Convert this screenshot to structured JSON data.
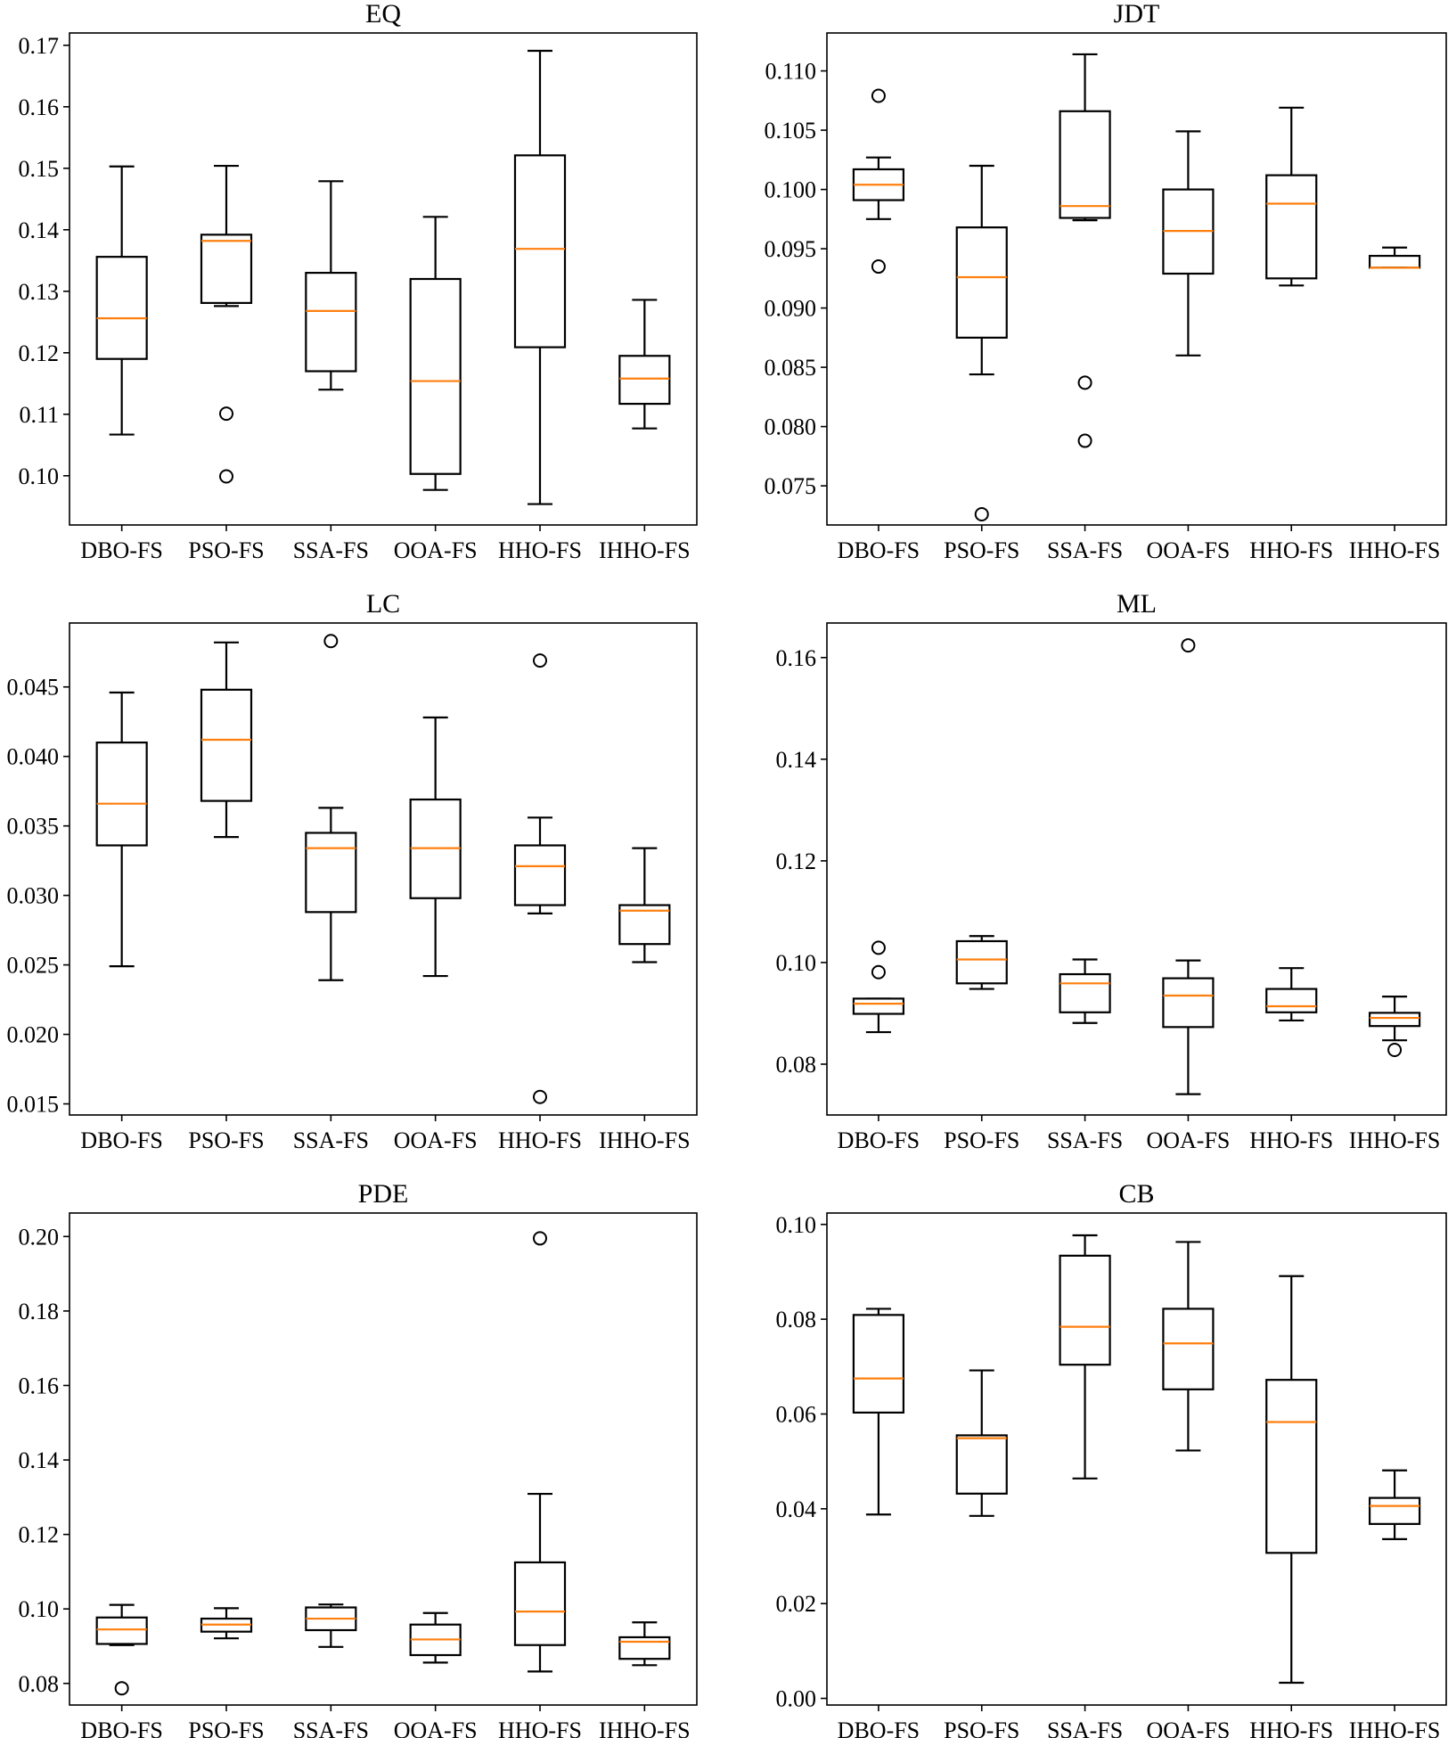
{
  "chart_data": [
    {
      "type": "box",
      "title": "EQ",
      "ylim": [
        0.092,
        0.172
      ],
      "yticks": [
        "0.10",
        "0.11",
        "0.12",
        "0.13",
        "0.14",
        "0.15",
        "0.16",
        "0.17"
      ],
      "categories": [
        "DBO-FS",
        "PSO-FS",
        "SSA-FS",
        "OOA-FS",
        "HHO-FS",
        "IHHO-FS"
      ],
      "boxes": [
        {
          "whislo": 0.1067,
          "q1": 0.119,
          "med": 0.1256,
          "q3": 0.1356,
          "whishi": 0.1503,
          "fliers": []
        },
        {
          "whislo": 0.1276,
          "q1": 0.1281,
          "med": 0.1382,
          "q3": 0.1392,
          "whishi": 0.1504,
          "fliers": [
            0.1101,
            0.0999
          ]
        },
        {
          "whislo": 0.114,
          "q1": 0.117,
          "med": 0.1268,
          "q3": 0.133,
          "whishi": 0.1479,
          "fliers": []
        },
        {
          "whislo": 0.0977,
          "q1": 0.1003,
          "med": 0.1154,
          "q3": 0.132,
          "whishi": 0.1421,
          "fliers": []
        },
        {
          "whislo": 0.0954,
          "q1": 0.1209,
          "med": 0.1369,
          "q3": 0.1521,
          "whishi": 0.1691,
          "fliers": []
        },
        {
          "whislo": 0.1077,
          "q1": 0.1117,
          "med": 0.1158,
          "q3": 0.1195,
          "whishi": 0.1286,
          "fliers": []
        }
      ]
    },
    {
      "type": "box",
      "title": "JDT",
      "ylim": [
        0.0717,
        0.1132
      ],
      "yticks": [
        "0.075",
        "0.080",
        "0.085",
        "0.090",
        "0.095",
        "0.100",
        "0.105",
        "0.110"
      ],
      "categories": [
        "DBO-FS",
        "PSO-FS",
        "SSA-FS",
        "OOA-FS",
        "HHO-FS",
        "IHHO-FS"
      ],
      "boxes": [
        {
          "whislo": 0.0975,
          "q1": 0.0991,
          "med": 0.1004,
          "q3": 0.1017,
          "whishi": 0.1027,
          "fliers": [
            0.1079,
            0.0935
          ]
        },
        {
          "whislo": 0.0844,
          "q1": 0.0875,
          "med": 0.0926,
          "q3": 0.0968,
          "whishi": 0.102,
          "fliers": [
            0.0726
          ]
        },
        {
          "whislo": 0.0974,
          "q1": 0.0976,
          "med": 0.0986,
          "q3": 0.1066,
          "whishi": 0.1114,
          "fliers": [
            0.0837,
            0.0788
          ]
        },
        {
          "whislo": 0.086,
          "q1": 0.0929,
          "med": 0.0965,
          "q3": 0.1,
          "whishi": 0.1049,
          "fliers": []
        },
        {
          "whislo": 0.0919,
          "q1": 0.0925,
          "med": 0.0988,
          "q3": 0.1012,
          "whishi": 0.1069,
          "fliers": []
        },
        {
          "whislo": 0.0934,
          "q1": 0.0934,
          "med": 0.0934,
          "q3": 0.0944,
          "whishi": 0.0951,
          "fliers": []
        }
      ]
    },
    {
      "type": "box",
      "title": "LC",
      "ylim": [
        0.0142,
        0.0496
      ],
      "yticks": [
        "0.015",
        "0.020",
        "0.025",
        "0.030",
        "0.035",
        "0.040",
        "0.045"
      ],
      "categories": [
        "DBO-FS",
        "PSO-FS",
        "SSA-FS",
        "OOA-FS",
        "HHO-FS",
        "IHHO-FS"
      ],
      "boxes": [
        {
          "whislo": 0.0249,
          "q1": 0.0336,
          "med": 0.0366,
          "q3": 0.041,
          "whishi": 0.0446,
          "fliers": []
        },
        {
          "whislo": 0.0342,
          "q1": 0.0368,
          "med": 0.0412,
          "q3": 0.0448,
          "whishi": 0.0482,
          "fliers": []
        },
        {
          "whislo": 0.0239,
          "q1": 0.0288,
          "med": 0.0334,
          "q3": 0.0345,
          "whishi": 0.0363,
          "fliers": [
            0.0483
          ]
        },
        {
          "whislo": 0.0242,
          "q1": 0.0298,
          "med": 0.0334,
          "q3": 0.0369,
          "whishi": 0.0428,
          "fliers": []
        },
        {
          "whislo": 0.0287,
          "q1": 0.0293,
          "med": 0.0321,
          "q3": 0.0336,
          "whishi": 0.0356,
          "fliers": [
            0.0469,
            0.0155
          ]
        },
        {
          "whislo": 0.0252,
          "q1": 0.0265,
          "med": 0.0289,
          "q3": 0.0293,
          "whishi": 0.0334,
          "fliers": []
        }
      ]
    },
    {
      "type": "box",
      "title": "ML",
      "ylim": [
        0.07,
        0.1668
      ],
      "yticks": [
        "0.08",
        "0.10",
        "0.12",
        "0.14",
        "0.16"
      ],
      "categories": [
        "DBO-FS",
        "PSO-FS",
        "SSA-FS",
        "OOA-FS",
        "HHO-FS",
        "IHHO-FS"
      ],
      "boxes": [
        {
          "whislo": 0.0863,
          "q1": 0.0899,
          "med": 0.0919,
          "q3": 0.0929,
          "whishi": 0.0929,
          "fliers": [
            0.1029,
            0.0981
          ]
        },
        {
          "whislo": 0.0948,
          "q1": 0.0959,
          "med": 0.1006,
          "q3": 0.1042,
          "whishi": 0.1052,
          "fliers": []
        },
        {
          "whislo": 0.0881,
          "q1": 0.0902,
          "med": 0.0959,
          "q3": 0.0977,
          "whishi": 0.1006,
          "fliers": []
        },
        {
          "whislo": 0.0741,
          "q1": 0.0873,
          "med": 0.0935,
          "q3": 0.0969,
          "whishi": 0.1004,
          "fliers": [
            0.1624
          ]
        },
        {
          "whislo": 0.0886,
          "q1": 0.0902,
          "med": 0.0914,
          "q3": 0.0948,
          "whishi": 0.0989,
          "fliers": []
        },
        {
          "whislo": 0.0847,
          "q1": 0.0875,
          "med": 0.0891,
          "q3": 0.0901,
          "whishi": 0.0933,
          "fliers": [
            0.0828
          ]
        }
      ]
    },
    {
      "type": "box",
      "title": "PDE",
      "ylim": [
        0.0742,
        0.2063
      ],
      "yticks": [
        "0.08",
        "0.10",
        "0.12",
        "0.14",
        "0.16",
        "0.18",
        "0.20"
      ],
      "categories": [
        "DBO-FS",
        "PSO-FS",
        "SSA-FS",
        "OOA-FS",
        "HHO-FS",
        "IHHO-FS"
      ],
      "boxes": [
        {
          "whislo": 0.0903,
          "q1": 0.0906,
          "med": 0.0945,
          "q3": 0.0977,
          "whishi": 0.1011,
          "fliers": [
            0.0787
          ]
        },
        {
          "whislo": 0.0921,
          "q1": 0.0939,
          "med": 0.0958,
          "q3": 0.0974,
          "whishi": 0.1002,
          "fliers": []
        },
        {
          "whislo": 0.0898,
          "q1": 0.0943,
          "med": 0.0974,
          "q3": 0.1004,
          "whishi": 0.1012,
          "fliers": []
        },
        {
          "whislo": 0.0856,
          "q1": 0.0876,
          "med": 0.0918,
          "q3": 0.0958,
          "whishi": 0.0989,
          "fliers": []
        },
        {
          "whislo": 0.0832,
          "q1": 0.0903,
          "med": 0.0993,
          "q3": 0.1125,
          "whishi": 0.1309,
          "fliers": [
            0.1995
          ]
        },
        {
          "whislo": 0.0849,
          "q1": 0.0866,
          "med": 0.0912,
          "q3": 0.0924,
          "whishi": 0.0964,
          "fliers": []
        }
      ]
    },
    {
      "type": "box",
      "title": "CB",
      "ylim": [
        -0.0014,
        0.1024
      ],
      "yticks": [
        "0.00",
        "0.02",
        "0.04",
        "0.06",
        "0.08",
        "0.10"
      ],
      "categories": [
        "DBO-FS",
        "PSO-FS",
        "SSA-FS",
        "OOA-FS",
        "HHO-FS",
        "IHHO-FS"
      ],
      "boxes": [
        {
          "whislo": 0.0388,
          "q1": 0.0603,
          "med": 0.0675,
          "q3": 0.0809,
          "whishi": 0.0822,
          "fliers": []
        },
        {
          "whislo": 0.0385,
          "q1": 0.0432,
          "med": 0.0549,
          "q3": 0.0555,
          "whishi": 0.0692,
          "fliers": []
        },
        {
          "whislo": 0.0464,
          "q1": 0.0704,
          "med": 0.0784,
          "q3": 0.0934,
          "whishi": 0.0977,
          "fliers": []
        },
        {
          "whislo": 0.0523,
          "q1": 0.0652,
          "med": 0.0749,
          "q3": 0.0822,
          "whishi": 0.0963,
          "fliers": []
        },
        {
          "whislo": 0.0033,
          "q1": 0.0307,
          "med": 0.0583,
          "q3": 0.0672,
          "whishi": 0.0891,
          "fliers": []
        },
        {
          "whislo": 0.0336,
          "q1": 0.0368,
          "med": 0.0406,
          "q3": 0.0423,
          "whishi": 0.0481,
          "fliers": []
        }
      ]
    }
  ]
}
